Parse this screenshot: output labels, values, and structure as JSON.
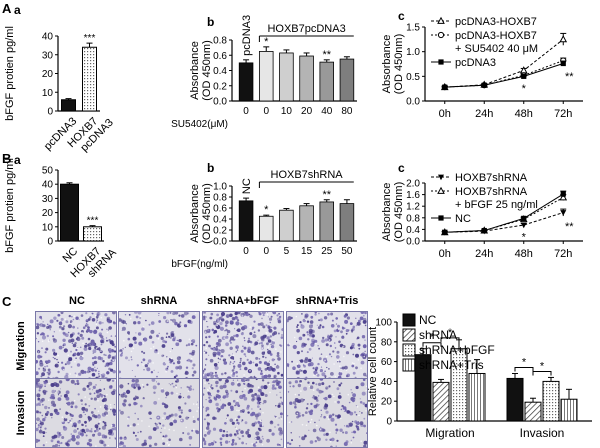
{
  "panels": {
    "A": "A",
    "B": "B",
    "C": "C",
    "Aa": "a",
    "Ab": "b",
    "Ac": "c",
    "Ba": "a",
    "Bb": "b",
    "Bc": "c"
  },
  "chart_data": [
    {
      "id": "Aa",
      "type": "bar",
      "ylabel": "bFGF protien pg/ml",
      "ylim": [
        0,
        40
      ],
      "yticks": [
        0,
        10,
        20,
        30,
        40
      ],
      "categories": [
        "pcDNA3",
        "HOXB7\npcDNA3"
      ],
      "values": [
        6,
        34
      ],
      "errors": [
        0.6,
        2.2
      ],
      "annotations": [
        "",
        "***"
      ],
      "colors": [
        "#111111",
        "#ffffff"
      ]
    },
    {
      "id": "Ab",
      "type": "bar",
      "ylabel": "Absorbance\n(OD 450nm)",
      "ylim": [
        0,
        0.8
      ],
      "yticks": [
        0.0,
        0.2,
        0.4,
        0.6,
        0.8
      ],
      "categories": [
        "0",
        "0",
        "10",
        "20",
        "40",
        "80"
      ],
      "values": [
        0.5,
        0.65,
        0.63,
        0.59,
        0.51,
        0.55
      ],
      "errors": [
        0.04,
        0.06,
        0.04,
        0.04,
        0.03,
        0.03
      ],
      "annotations": [
        "",
        "*",
        "",
        "",
        "**",
        ""
      ],
      "colors": [
        "#111111",
        "#e6e6e6",
        "#cfcfcf",
        "#b4b4b4",
        "#999999",
        "#7e7e7e"
      ],
      "bar_label_first": "pcDNA3",
      "group_label": "HOXB7pcDNA3",
      "xlabel_prefix": "SU5402(μM)"
    },
    {
      "id": "Ac",
      "type": "line",
      "ylabel": "Absorbance\n(OD 450nm)",
      "ylim": [
        0,
        1.5
      ],
      "yticks": [
        0.0,
        0.5,
        1.0,
        1.5
      ],
      "categories": [
        "0h",
        "24h",
        "48h",
        "72h"
      ],
      "series": [
        {
          "name": "pcDNA3-HOXB7",
          "values": [
            0.28,
            0.33,
            0.62,
            1.25
          ],
          "errors": [
            0.02,
            0.02,
            0.04,
            0.12
          ]
        },
        {
          "name": "pcDNA3-HOXB7\n+ SU5402 40 μM",
          "values": [
            0.28,
            0.32,
            0.52,
            0.82
          ],
          "errors": [
            0.02,
            0.02,
            0.03,
            0.05
          ]
        },
        {
          "name": "pcDNA3",
          "values": [
            0.28,
            0.32,
            0.5,
            0.76
          ],
          "errors": [
            0.02,
            0.02,
            0.03,
            0.05
          ]
        }
      ],
      "annotations": [
        {
          "x": "48h",
          "text": "*"
        },
        {
          "x": "72h",
          "text": "**"
        }
      ]
    },
    {
      "id": "Ba",
      "type": "bar",
      "ylabel": "bFGF protien pg/ml",
      "ylim": [
        0,
        50
      ],
      "yticks": [
        0,
        10,
        20,
        30,
        40,
        50
      ],
      "categories": [
        "NC",
        "HOXB7\nshRNA"
      ],
      "values": [
        40,
        10
      ],
      "errors": [
        1.0,
        0.8
      ],
      "annotations": [
        "",
        "***"
      ],
      "colors": [
        "#111111",
        "#ffffff"
      ]
    },
    {
      "id": "Bb",
      "type": "bar",
      "ylabel": "Absorbance\n(OD 450nm)",
      "ylim": [
        0,
        1.0
      ],
      "yticks": [
        0.0,
        0.2,
        0.4,
        0.6,
        0.8,
        1.0
      ],
      "categories": [
        "0",
        "0",
        "5",
        "15",
        "25",
        "50"
      ],
      "values": [
        0.73,
        0.45,
        0.56,
        0.64,
        0.71,
        0.68
      ],
      "errors": [
        0.05,
        0.02,
        0.03,
        0.04,
        0.04,
        0.07
      ],
      "annotations": [
        "",
        "*",
        "",
        "",
        "**",
        ""
      ],
      "colors": [
        "#111111",
        "#e6e6e6",
        "#cfcfcf",
        "#b4b4b4",
        "#999999",
        "#7e7e7e"
      ],
      "bar_label_first": "NC",
      "group_label": "HOXB7shRNA",
      "xlabel_prefix": "bFGF(ng/ml)"
    },
    {
      "id": "Bc",
      "type": "line",
      "ylabel": "Absorbance\n(OD 450nm)",
      "ylim": [
        0,
        2.0
      ],
      "yticks": [
        0.0,
        0.4,
        0.8,
        1.2,
        1.6,
        2.0
      ],
      "categories": [
        "0h",
        "24h",
        "48h",
        "72h"
      ],
      "series": [
        {
          "name": "HOXB7shRNA",
          "values": [
            0.3,
            0.34,
            0.55,
            0.98
          ],
          "errors": [
            0.02,
            0.02,
            0.05,
            0.12
          ]
        },
        {
          "name": "HOXB7shRNA\n+ bFGF 25 ng/ml",
          "values": [
            0.3,
            0.36,
            0.75,
            1.5
          ],
          "errors": [
            0.02,
            0.02,
            0.05,
            0.1
          ]
        },
        {
          "name": "NC",
          "values": [
            0.3,
            0.36,
            0.78,
            1.62
          ],
          "errors": [
            0.02,
            0.02,
            0.05,
            0.1
          ]
        }
      ],
      "annotations": [
        {
          "x": "48h",
          "text": "*"
        },
        {
          "x": "72h",
          "text": "**"
        }
      ]
    },
    {
      "id": "Cc",
      "type": "bar",
      "ylabel": "Relative cell count",
      "ylim": [
        0,
        100
      ],
      "yticks": [
        0,
        20,
        40,
        60,
        80,
        100
      ],
      "categories": [
        "Migration",
        "Invasion"
      ],
      "series": [
        {
          "name": "NC",
          "values": [
            67,
            43
          ],
          "errors": [
            6,
            5
          ]
        },
        {
          "name": "shRNA",
          "values": [
            39,
            19
          ],
          "errors": [
            3,
            4
          ]
        },
        {
          "name": "shRNA+bFGF",
          "values": [
            73,
            40
          ],
          "errors": [
            9,
            4
          ]
        },
        {
          "name": "shRNA+Tris",
          "values": [
            48,
            22
          ],
          "errors": [
            14,
            10
          ]
        }
      ],
      "annotations": [
        "*",
        "*",
        "*",
        "*"
      ]
    }
  ],
  "micrographs": {
    "columns": [
      "NC",
      "shRNA",
      "shRNA+bFGF",
      "shRNA+Tris"
    ],
    "rows": [
      "Migration",
      "Invasion"
    ]
  }
}
